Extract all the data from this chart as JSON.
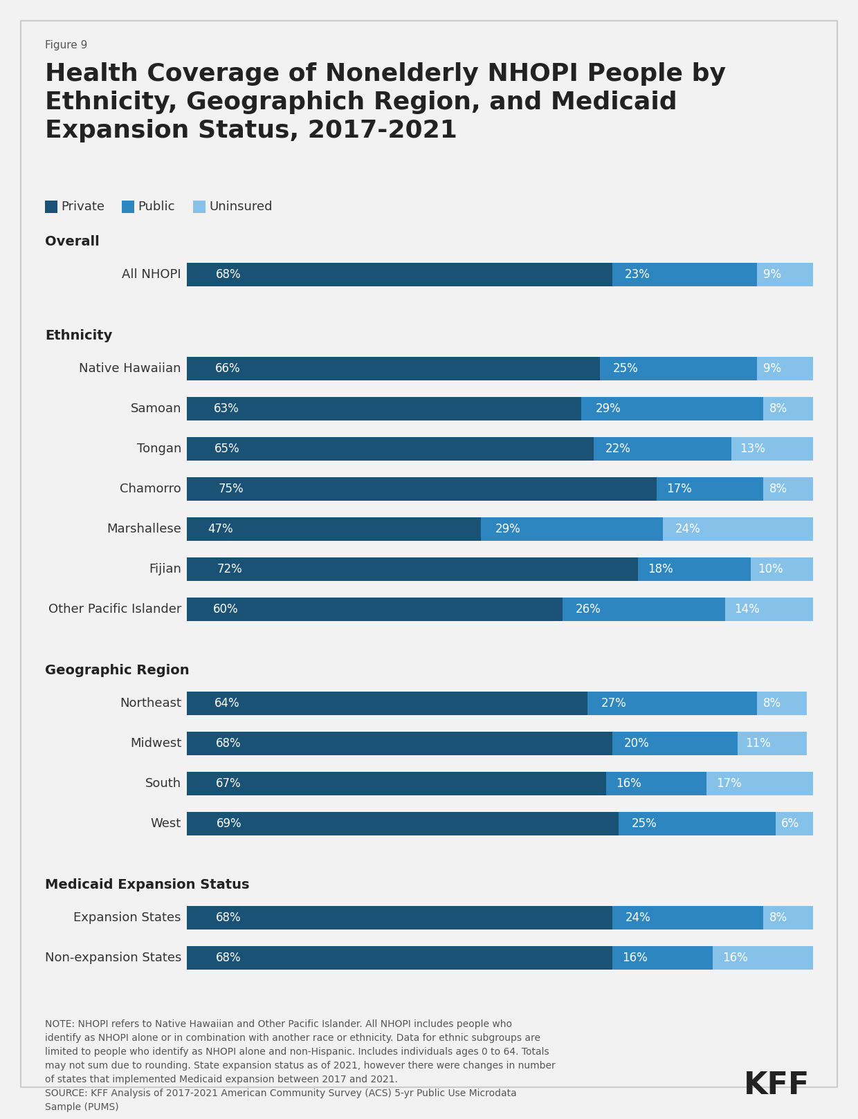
{
  "figure_label": "Figure 9",
  "title": "Health Coverage of Nonelderly NHOPI People by\nEthnicity, Geographich Region, and Medicaid\nExpansion Status, 2017-2021",
  "color_private": "#1a5276",
  "color_public": "#2e86c1",
  "color_uninsured": "#85c1e9",
  "legend_labels": [
    "Private",
    "Public",
    "Uninsured"
  ],
  "sections": [
    {
      "header": "Overall",
      "rows": [
        {
          "label": "All NHOPI",
          "private": 68,
          "public": 23,
          "uninsured": 9
        }
      ]
    },
    {
      "header": "Ethnicity",
      "rows": [
        {
          "label": "Native Hawaiian",
          "private": 66,
          "public": 25,
          "uninsured": 9
        },
        {
          "label": "Samoan",
          "private": 63,
          "public": 29,
          "uninsured": 8
        },
        {
          "label": "Tongan",
          "private": 65,
          "public": 22,
          "uninsured": 13
        },
        {
          "label": "Chamorro",
          "private": 75,
          "public": 17,
          "uninsured": 8
        },
        {
          "label": "Marshallese",
          "private": 47,
          "public": 29,
          "uninsured": 24
        },
        {
          "label": "Fijian",
          "private": 72,
          "public": 18,
          "uninsured": 10
        },
        {
          "label": "Other Pacific Islander",
          "private": 60,
          "public": 26,
          "uninsured": 14
        }
      ]
    },
    {
      "header": "Geographic Region",
      "rows": [
        {
          "label": "Northeast",
          "private": 64,
          "public": 27,
          "uninsured": 8
        },
        {
          "label": "Midwest",
          "private": 68,
          "public": 20,
          "uninsured": 11
        },
        {
          "label": "South",
          "private": 67,
          "public": 16,
          "uninsured": 17
        },
        {
          "label": "West",
          "private": 69,
          "public": 25,
          "uninsured": 6
        }
      ]
    },
    {
      "header": "Medicaid Expansion Status",
      "rows": [
        {
          "label": "Expansion States",
          "private": 68,
          "public": 24,
          "uninsured": 8
        },
        {
          "label": "Non-expansion States",
          "private": 68,
          "public": 16,
          "uninsured": 16
        }
      ]
    }
  ],
  "note_text": "NOTE: NHOPI refers to Native Hawaiian and Other Pacific Islander. All NHOPI includes people who\nidentify as NHOPI alone or in combination with another race or ethnicity. Data for ethnic subgroups are\nlimited to people who identify as NHOPI alone and non-Hispanic. Includes individuals ages 0 to 64. Totals\nmay not sum due to rounding. State expansion status as of 2021, however there were changes in number\nof states that implemented Medicaid expansion between 2017 and 2021.\nSOURCE: KFF Analysis of 2017-2021 American Community Survey (ACS) 5-yr Public Use Microdata\nSample (PUMS)",
  "background_color": "#f2f2f2",
  "font_family": "DejaVu Sans"
}
